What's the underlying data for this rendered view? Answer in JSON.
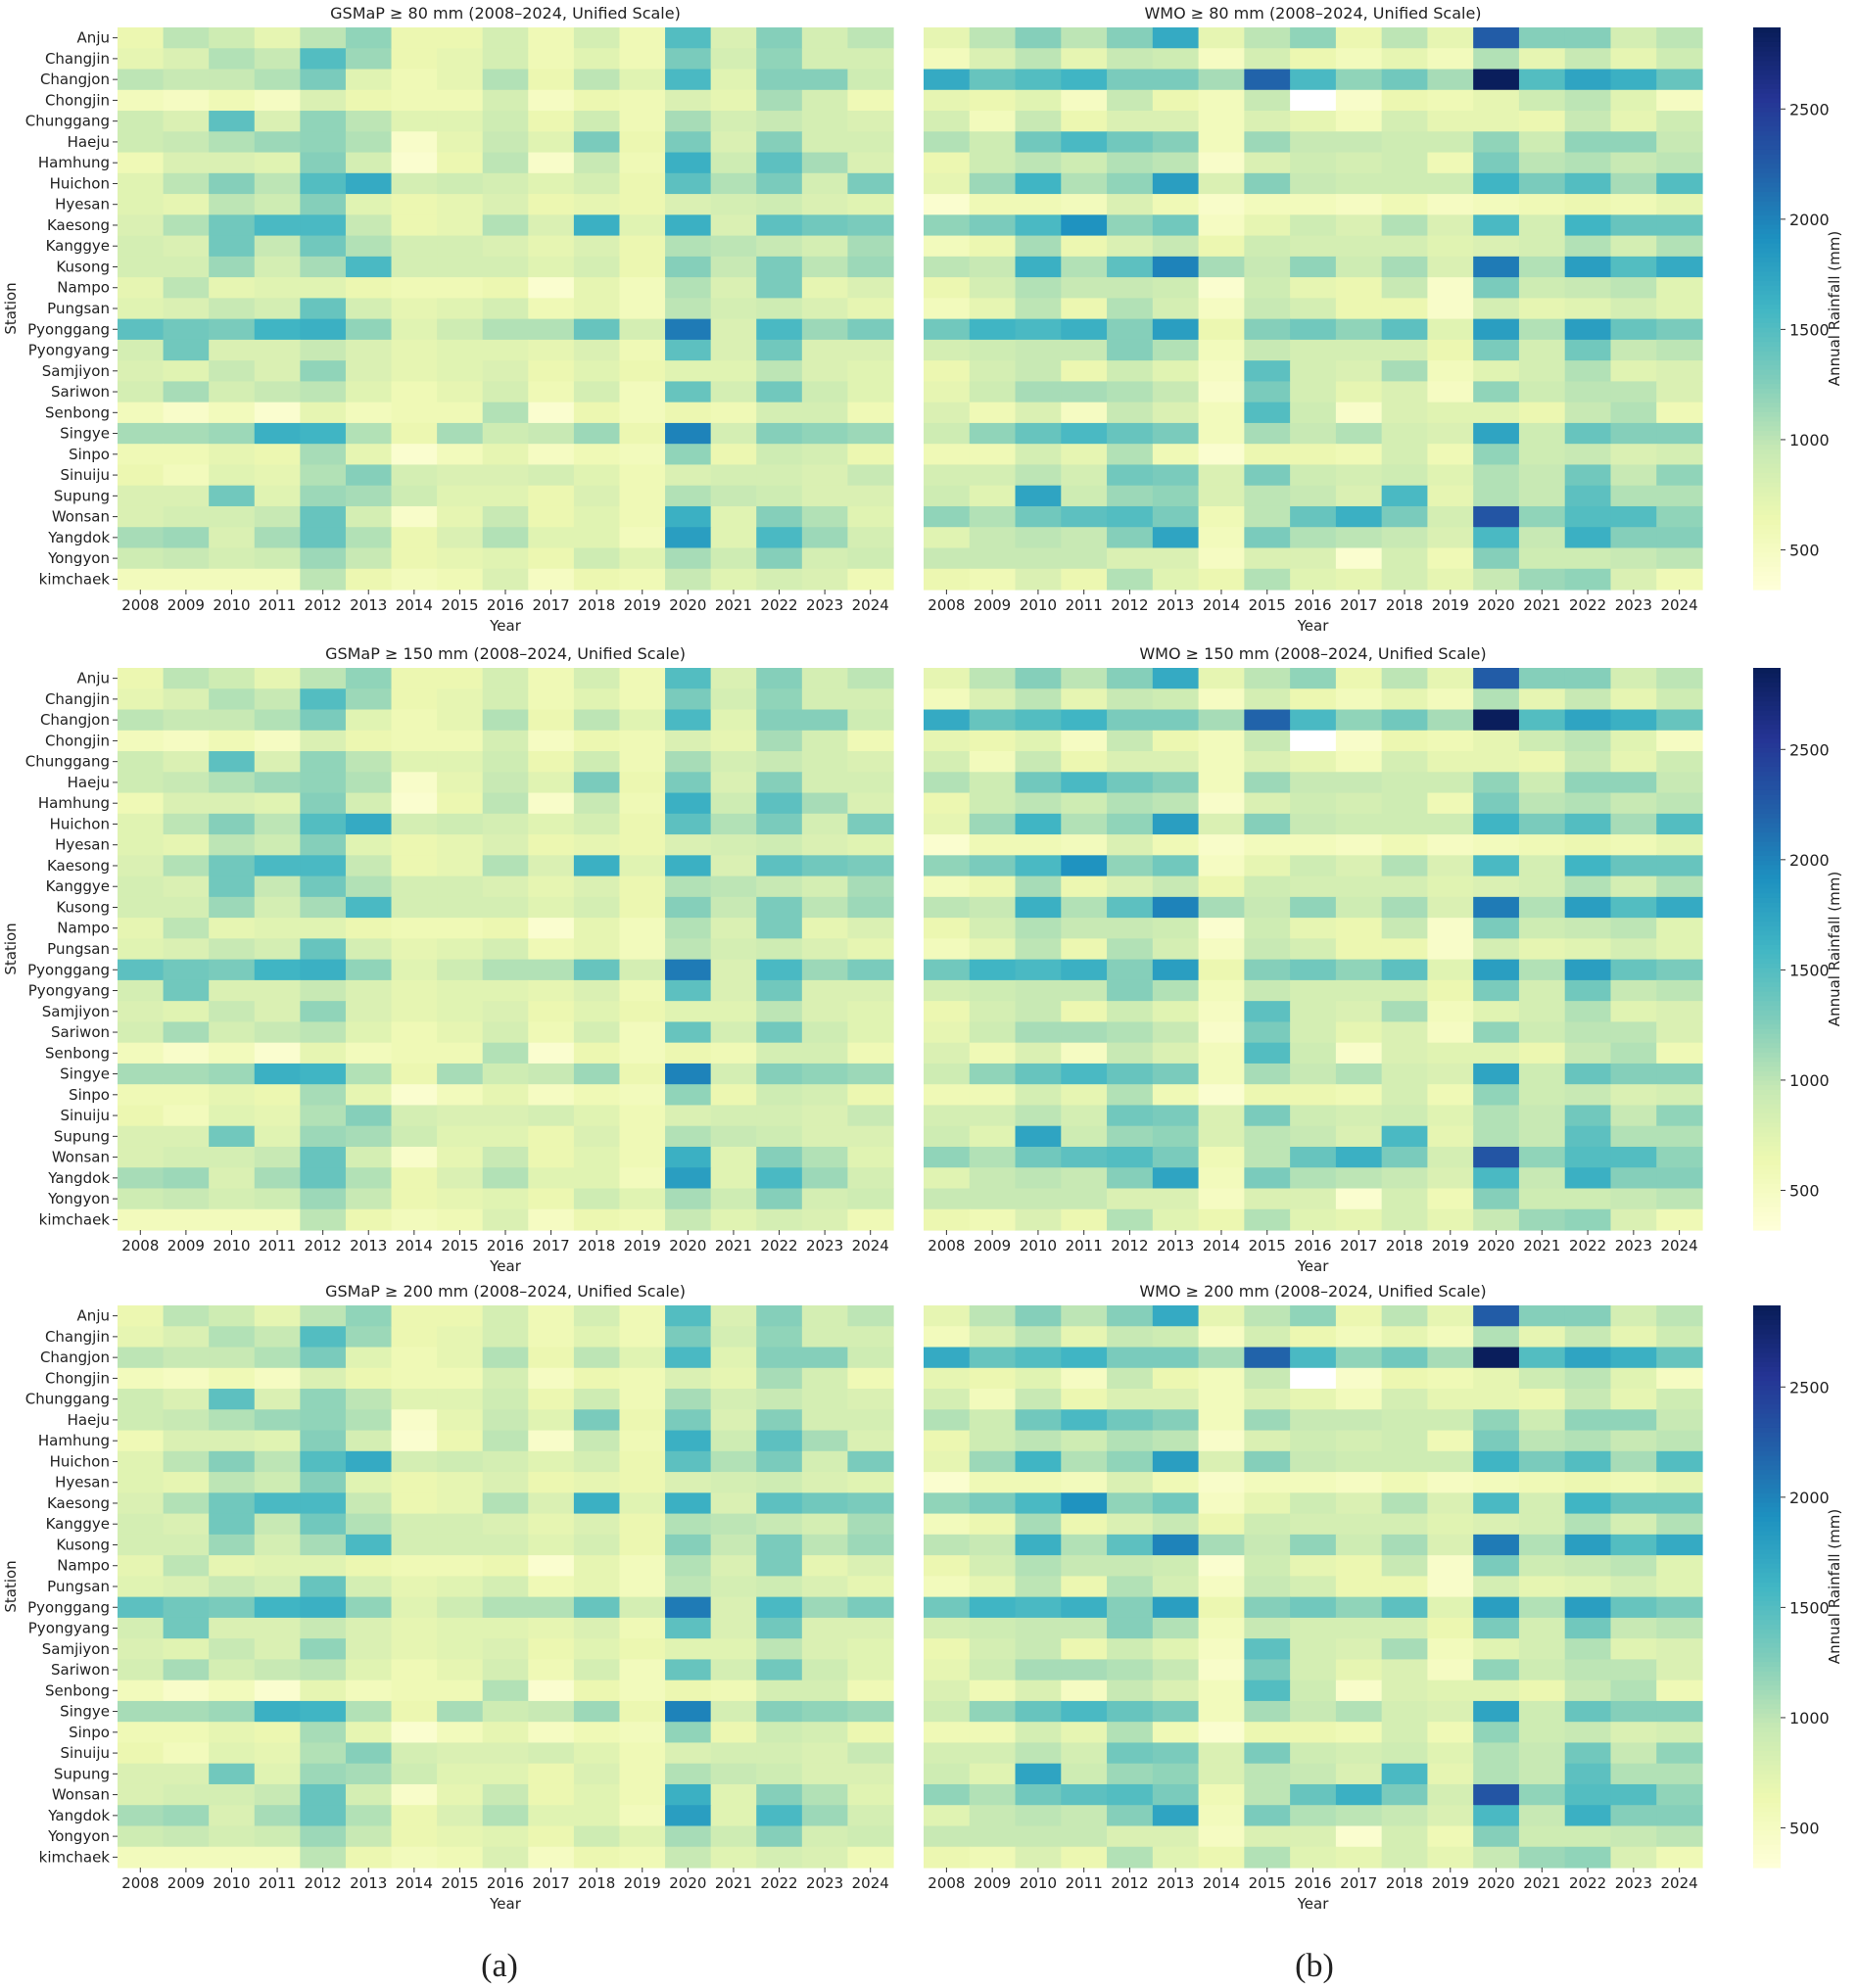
{
  "colormap": "YlGnBu",
  "colorbar": {
    "label": "Annual Rainfall (mm)",
    "ticks": [
      500,
      1000,
      1500,
      2000,
      2500
    ],
    "range": [
      320,
      2870
    ]
  },
  "captions": {
    "a": "(a)",
    "b": "(b)"
  },
  "stations": [
    "Anju",
    "Changjin",
    "Changjon",
    "Chongjin",
    "Chunggang",
    "Haeju",
    "Hamhung",
    "Huichon",
    "Hyesan",
    "Kaesong",
    "Kanggye",
    "Kusong",
    "Nampo",
    "Pungsan",
    "Pyonggang",
    "Pyongyang",
    "Samjiyon",
    "Sariwon",
    "Senbong",
    "Singye",
    "Sinpo",
    "Sinuiju",
    "Supung",
    "Wonsan",
    "Yangdok",
    "Yongyon",
    "kimchaek"
  ],
  "years": [
    "2008",
    "2009",
    "2010",
    "2011",
    "2012",
    "2013",
    "2014",
    "2015",
    "2016",
    "2017",
    "2018",
    "2019",
    "2020",
    "2021",
    "2022",
    "2023",
    "2024"
  ],
  "chart_data": [
    {
      "type": "heatmap",
      "title": "GSMaP ≥ 80 mm (2008–2024, Unified Scale)",
      "xlabel": "Year",
      "ylabel": "Station",
      "grid": false,
      "source": "gsmap"
    },
    {
      "type": "heatmap",
      "title": "WMO ≥ 80 mm (2008–2024, Unified Scale)",
      "xlabel": "Year",
      "ylabel": "",
      "grid": false,
      "source": "wmo"
    },
    {
      "type": "heatmap",
      "title": "GSMaP ≥ 150 mm (2008–2024, Unified Scale)",
      "xlabel": "Year",
      "ylabel": "Station",
      "grid": false,
      "source": "gsmap"
    },
    {
      "type": "heatmap",
      "title": "WMO ≥ 150 mm (2008–2024, Unified Scale)",
      "xlabel": "Year",
      "ylabel": "",
      "grid": false,
      "source": "wmo"
    },
    {
      "type": "heatmap",
      "title": "GSMaP ≥ 200 mm (2008–2024, Unified Scale)",
      "xlabel": "Year",
      "ylabel": "Station",
      "grid": false,
      "source": "gsmap"
    },
    {
      "type": "heatmap",
      "title": "WMO ≥ 200 mm (2008–2024, Unified Scale)",
      "xlabel": "Year",
      "ylabel": "",
      "grid": false,
      "source": "wmo"
    }
  ],
  "values": {
    "gsmap": [
      [
        650,
        1000,
        900,
        700,
        1000,
        1200,
        650,
        650,
        850,
        600,
        850,
        600,
        1500,
        800,
        1250,
        850,
        1000
      ],
      [
        700,
        800,
        1050,
        950,
        1500,
        1150,
        650,
        700,
        850,
        600,
        750,
        600,
        1300,
        850,
        1200,
        850,
        850
      ],
      [
        1000,
        950,
        950,
        1050,
        1300,
        750,
        600,
        700,
        1050,
        650,
        1000,
        750,
        1550,
        750,
        1250,
        1250,
        900
      ],
      [
        550,
        500,
        600,
        500,
        800,
        650,
        600,
        600,
        850,
        500,
        650,
        600,
        800,
        700,
        1100,
        850,
        600
      ],
      [
        900,
        800,
        1450,
        800,
        1200,
        1000,
        750,
        750,
        900,
        650,
        900,
        600,
        1100,
        850,
        950,
        850,
        800
      ],
      [
        900,
        950,
        1050,
        1150,
        1200,
        1050,
        450,
        700,
        950,
        750,
        1300,
        650,
        1300,
        800,
        1250,
        850,
        850
      ],
      [
        600,
        800,
        800,
        750,
        1250,
        850,
        400,
        650,
        1000,
        450,
        950,
        600,
        1650,
        900,
        1450,
        1100,
        800
      ],
      [
        750,
        1000,
        1250,
        1000,
        1500,
        1700,
        850,
        900,
        850,
        750,
        850,
        650,
        1450,
        1050,
        1300,
        850,
        1300
      ],
      [
        750,
        700,
        1000,
        900,
        1250,
        750,
        650,
        700,
        800,
        650,
        700,
        650,
        800,
        850,
        900,
        800,
        750
      ],
      [
        800,
        1050,
        1350,
        1550,
        1550,
        950,
        650,
        700,
        1050,
        800,
        1650,
        750,
        1650,
        800,
        1450,
        1350,
        1300
      ],
      [
        850,
        800,
        1350,
        950,
        1350,
        1050,
        850,
        850,
        800,
        700,
        800,
        650,
        1050,
        1000,
        950,
        850,
        1100
      ],
      [
        850,
        850,
        1150,
        850,
        1100,
        1550,
        850,
        850,
        850,
        750,
        850,
        650,
        1250,
        950,
        1300,
        1000,
        1150
      ],
      [
        700,
        1000,
        700,
        750,
        750,
        650,
        600,
        600,
        650,
        400,
        700,
        550,
        1050,
        800,
        1300,
        700,
        800
      ],
      [
        750,
        800,
        950,
        850,
        1400,
        850,
        700,
        750,
        850,
        600,
        700,
        550,
        1000,
        850,
        900,
        800,
        700
      ],
      [
        1450,
        1350,
        1300,
        1600,
        1650,
        1200,
        750,
        900,
        1050,
        1050,
        1400,
        850,
        2050,
        800,
        1550,
        1150,
        1300
      ],
      [
        850,
        1350,
        800,
        800,
        950,
        800,
        700,
        750,
        750,
        700,
        800,
        600,
        1450,
        800,
        1350,
        800,
        800
      ],
      [
        800,
        750,
        950,
        800,
        1200,
        800,
        700,
        750,
        800,
        650,
        750,
        650,
        750,
        750,
        1000,
        800,
        750
      ],
      [
        850,
        1100,
        850,
        950,
        1000,
        750,
        600,
        700,
        850,
        600,
        850,
        550,
        1400,
        850,
        1350,
        900,
        750
      ],
      [
        550,
        450,
        550,
        400,
        700,
        550,
        600,
        600,
        1050,
        400,
        650,
        550,
        650,
        600,
        850,
        850,
        600
      ],
      [
        1100,
        1100,
        1150,
        1650,
        1600,
        1050,
        650,
        1100,
        900,
        950,
        1150,
        650,
        2000,
        850,
        1250,
        1200,
        1150
      ],
      [
        600,
        600,
        700,
        650,
        1100,
        700,
        400,
        550,
        700,
        500,
        600,
        550,
        1200,
        650,
        900,
        850,
        650
      ],
      [
        650,
        550,
        750,
        700,
        1050,
        1250,
        850,
        800,
        800,
        850,
        750,
        600,
        800,
        850,
        850,
        800,
        950
      ],
      [
        800,
        800,
        1350,
        750,
        1150,
        1100,
        900,
        750,
        750,
        650,
        800,
        600,
        1050,
        950,
        900,
        800,
        800
      ],
      [
        800,
        850,
        850,
        950,
        1400,
        850,
        450,
        700,
        950,
        650,
        750,
        600,
        1650,
        750,
        1250,
        1050,
        750
      ],
      [
        1100,
        1150,
        800,
        1100,
        1400,
        1050,
        650,
        800,
        1050,
        750,
        750,
        550,
        1800,
        750,
        1550,
        1150,
        850
      ],
      [
        900,
        950,
        850,
        900,
        1150,
        950,
        650,
        700,
        750,
        650,
        900,
        750,
        1100,
        900,
        1250,
        850,
        900
      ],
      [
        550,
        550,
        550,
        550,
        1000,
        650,
        550,
        600,
        800,
        500,
        650,
        600,
        950,
        750,
        850,
        800,
        600
      ]
    ],
    "wmo": [
      [
        700,
        1000,
        1250,
        1000,
        1250,
        1700,
        700,
        1000,
        1200,
        650,
        1000,
        700,
        2250,
        1250,
        1250,
        850,
        1000
      ],
      [
        550,
        800,
        1000,
        700,
        950,
        900,
        500,
        850,
        650,
        550,
        700,
        550,
        1050,
        700,
        950,
        700,
        900
      ],
      [
        1700,
        1400,
        1500,
        1600,
        1300,
        1300,
        1100,
        2200,
        1550,
        1200,
        1350,
        1100,
        2850,
        1500,
        1750,
        1650,
        1400
      ],
      [
        700,
        650,
        750,
        500,
        950,
        650,
        550,
        950,
        null,
        450,
        650,
        600,
        700,
        900,
        1000,
        750,
        500
      ],
      [
        850,
        550,
        950,
        650,
        800,
        800,
        550,
        800,
        700,
        550,
        850,
        700,
        700,
        650,
        950,
        700,
        900
      ],
      [
        1050,
        900,
        1350,
        1550,
        1350,
        1250,
        550,
        1150,
        950,
        950,
        900,
        900,
        1200,
        900,
        1200,
        1200,
        950
      ],
      [
        650,
        900,
        1000,
        900,
        1050,
        1000,
        450,
        800,
        900,
        850,
        900,
        600,
        1300,
        1000,
        1050,
        950,
        1000
      ],
      [
        700,
        1150,
        1600,
        1050,
        1200,
        1800,
        800,
        1250,
        950,
        900,
        900,
        900,
        1600,
        1300,
        1500,
        1100,
        1500
      ],
      [
        400,
        600,
        600,
        550,
        800,
        600,
        450,
        550,
        550,
        500,
        600,
        500,
        550,
        600,
        650,
        600,
        700
      ],
      [
        1200,
        1300,
        1550,
        1900,
        1200,
        1350,
        500,
        700,
        900,
        800,
        1050,
        800,
        1550,
        850,
        1600,
        1400,
        1400
      ],
      [
        550,
        650,
        1100,
        650,
        800,
        950,
        650,
        900,
        850,
        850,
        850,
        750,
        800,
        850,
        1050,
        850,
        1050
      ],
      [
        1000,
        950,
        1650,
        1050,
        1450,
        2000,
        1100,
        950,
        1200,
        900,
        1100,
        800,
        2050,
        1050,
        1800,
        1500,
        1700
      ],
      [
        650,
        850,
        1050,
        950,
        950,
        900,
        400,
        900,
        700,
        650,
        950,
        450,
        1300,
        900,
        950,
        1000,
        750
      ],
      [
        550,
        700,
        1000,
        650,
        1050,
        850,
        500,
        950,
        850,
        650,
        650,
        450,
        850,
        700,
        750,
        850,
        750
      ],
      [
        1350,
        1600,
        1550,
        1650,
        1250,
        1800,
        650,
        1250,
        1350,
        1200,
        1450,
        750,
        1800,
        1050,
        1800,
        1400,
        1300
      ],
      [
        850,
        900,
        950,
        950,
        1250,
        1050,
        550,
        950,
        850,
        850,
        850,
        650,
        1300,
        850,
        1350,
        950,
        1000
      ],
      [
        650,
        850,
        950,
        650,
        900,
        750,
        500,
        1450,
        850,
        800,
        1100,
        550,
        750,
        850,
        1050,
        750,
        800
      ],
      [
        700,
        900,
        1100,
        1100,
        1050,
        950,
        450,
        1300,
        850,
        700,
        800,
        500,
        1200,
        900,
        1000,
        1000,
        800
      ],
      [
        800,
        600,
        800,
        500,
        950,
        800,
        550,
        1500,
        900,
        450,
        800,
        750,
        750,
        650,
        950,
        1050,
        600
      ],
      [
        900,
        1200,
        1400,
        1550,
        1400,
        1300,
        550,
        1100,
        950,
        1050,
        850,
        800,
        1750,
        900,
        1400,
        1250,
        1250
      ],
      [
        600,
        600,
        850,
        700,
        1050,
        600,
        400,
        650,
        650,
        600,
        850,
        600,
        1200,
        900,
        950,
        800,
        850
      ],
      [
        850,
        850,
        1000,
        850,
        1350,
        1300,
        800,
        1300,
        900,
        850,
        900,
        750,
        1050,
        950,
        1350,
        950,
        1200
      ],
      [
        900,
        750,
        1750,
        900,
        1150,
        1200,
        800,
        1000,
        950,
        800,
        1550,
        700,
        1050,
        950,
        1450,
        1050,
        1050
      ],
      [
        1200,
        1050,
        1350,
        1450,
        1500,
        1300,
        600,
        1000,
        1400,
        1650,
        1300,
        850,
        2300,
        1200,
        1500,
        1500,
        1200
      ],
      [
        750,
        950,
        1000,
        950,
        1250,
        1750,
        550,
        1300,
        1050,
        1000,
        950,
        800,
        1550,
        950,
        1650,
        1250,
        1250
      ],
      [
        950,
        950,
        950,
        950,
        800,
        800,
        500,
        800,
        800,
        400,
        850,
        600,
        1250,
        900,
        900,
        950,
        1000
      ],
      [
        650,
        600,
        800,
        650,
        1050,
        750,
        650,
        1050,
        750,
        700,
        850,
        700,
        950,
        1150,
        1200,
        800,
        600
      ]
    ]
  }
}
